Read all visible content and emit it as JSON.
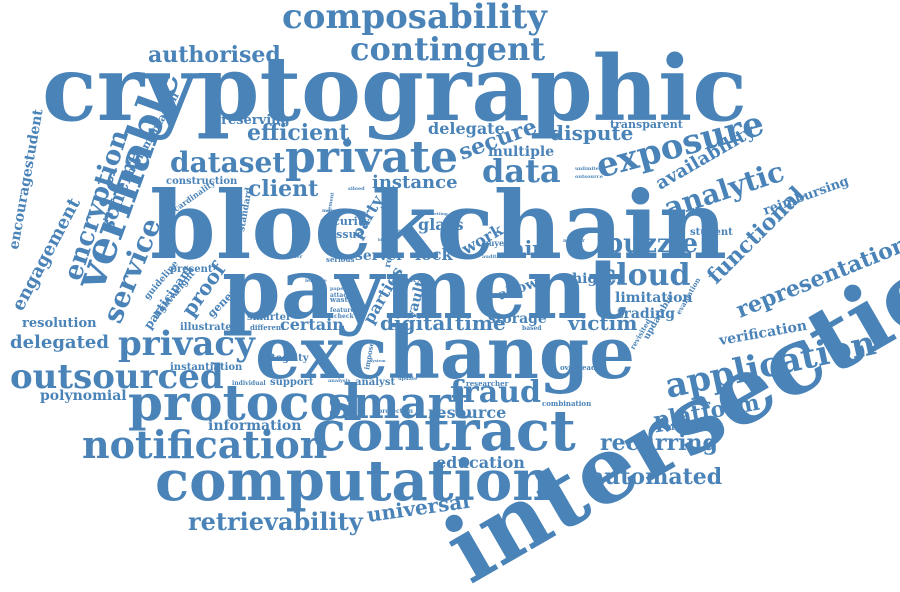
{
  "cloud": {
    "color": "#4a83b8",
    "words": [
      {
        "text": "cryptographic",
        "weight": 100
      },
      {
        "text": "blockchain",
        "weight": 96
      },
      {
        "text": "payment",
        "weight": 94
      },
      {
        "text": "intersection",
        "weight": 92
      },
      {
        "text": "exchange",
        "weight": 90
      },
      {
        "text": "computation",
        "weight": 70
      },
      {
        "text": "contract",
        "weight": 66
      },
      {
        "text": "protocol",
        "weight": 62
      },
      {
        "text": "smart",
        "weight": 55
      },
      {
        "text": "verifiable",
        "weight": 54
      },
      {
        "text": "notification",
        "weight": 50
      },
      {
        "text": "private",
        "weight": 50
      },
      {
        "text": "application",
        "weight": 46
      },
      {
        "text": "exposure",
        "weight": 45
      },
      {
        "text": "outsourced",
        "weight": 44
      },
      {
        "text": "privacy",
        "weight": 42
      },
      {
        "text": "composability",
        "weight": 42
      },
      {
        "text": "contingent",
        "weight": 40
      },
      {
        "text": "data",
        "weight": 38
      },
      {
        "text": "cloud",
        "weight": 38
      },
      {
        "text": "puzzle",
        "weight": 36
      },
      {
        "text": "analytic",
        "weight": 36
      },
      {
        "text": "dataset",
        "weight": 34
      },
      {
        "text": "fraud",
        "weight": 34
      },
      {
        "text": "encryption",
        "weight": 32
      },
      {
        "text": "service",
        "weight": 32
      },
      {
        "text": "client",
        "weight": 30
      },
      {
        "text": "retrievability",
        "weight": 30
      },
      {
        "text": "representation",
        "weight": 28
      },
      {
        "text": "platform",
        "weight": 28
      },
      {
        "text": "functional",
        "weight": 28
      },
      {
        "text": "automated",
        "weight": 28
      },
      {
        "text": "recurring",
        "weight": 28
      },
      {
        "text": "digital",
        "weight": 26
      },
      {
        "text": "time",
        "weight": 26
      },
      {
        "text": "victim",
        "weight": 26
      },
      {
        "text": "universal",
        "weight": 26
      },
      {
        "text": "secure",
        "weight": 26
      },
      {
        "text": "efficient",
        "weight": 26
      },
      {
        "text": "authorised",
        "weight": 26
      },
      {
        "text": "scheme",
        "weight": 26
      },
      {
        "text": "engagement",
        "weight": 24
      },
      {
        "text": "encouragestudent",
        "weight": 22
      },
      {
        "text": "proof",
        "weight": 24
      },
      {
        "text": "party",
        "weight": 24
      },
      {
        "text": "instance",
        "weight": 24
      },
      {
        "text": "availability",
        "weight": 24
      },
      {
        "text": "dispute",
        "weight": 24
      },
      {
        "text": "fair",
        "weight": 24
      },
      {
        "text": "delegated",
        "weight": 24
      },
      {
        "text": "delegate",
        "weight": 20
      },
      {
        "text": "polynomial",
        "weight": 20
      },
      {
        "text": "education",
        "weight": 20
      },
      {
        "text": "resource",
        "weight": 20
      },
      {
        "text": "information",
        "weight": 18
      },
      {
        "text": "multiple",
        "weight": 18
      },
      {
        "text": "storage",
        "weight": 18
      },
      {
        "text": "limitation",
        "weight": 18
      },
      {
        "text": "trading",
        "weight": 18
      },
      {
        "text": "higher",
        "weight": 18
      },
      {
        "text": "parties",
        "weight": 18
      },
      {
        "text": "certain",
        "weight": 18
      },
      {
        "text": "vault",
        "weight": 18
      },
      {
        "text": "verification",
        "weight": 18
      },
      {
        "text": "reimbursing",
        "weight": 16
      },
      {
        "text": "resolution",
        "weight": 16
      },
      {
        "text": "transparent",
        "weight": 16
      },
      {
        "text": "preserving",
        "weight": 16
      },
      {
        "text": "implementation",
        "weight": 16
      },
      {
        "text": "participant",
        "weight": 16
      },
      {
        "text": "generic",
        "weight": 16
      },
      {
        "text": "instantiation",
        "weight": 14
      },
      {
        "text": "construction",
        "weight": 14
      },
      {
        "text": "lock",
        "weight": 18
      },
      {
        "text": "glass",
        "weight": 18
      },
      {
        "text": "work",
        "weight": 18
      },
      {
        "text": "allow",
        "weight": 18
      },
      {
        "text": "server",
        "weight": 18
      },
      {
        "text": "security",
        "weight": 14
      },
      {
        "text": "issue",
        "weight": 14
      },
      {
        "text": "integrity",
        "weight": 14
      },
      {
        "text": "illustrate",
        "weight": 14
      },
      {
        "text": "present",
        "weight": 14
      },
      {
        "text": "guideline",
        "weight": 12
      },
      {
        "text": "lightweight",
        "weight": 12
      },
      {
        "text": "cardinality",
        "weight": 12
      },
      {
        "text": "standard",
        "weight": 12
      },
      {
        "text": "smarter",
        "weight": 12
      },
      {
        "text": "different",
        "weight": 12
      },
      {
        "text": "feature",
        "weight": 12
      },
      {
        "text": "waste",
        "weight": 12
      },
      {
        "text": "check",
        "weight": 12
      },
      {
        "text": "serious",
        "weight": 12
      },
      {
        "text": "cost",
        "weight": 12
      },
      {
        "text": "support",
        "weight": 14
      },
      {
        "text": "analyst",
        "weight": 14
      },
      {
        "text": "individual",
        "weight": 12
      },
      {
        "text": "analysis",
        "weight": 10
      },
      {
        "text": "researcher",
        "weight": 12
      },
      {
        "text": "combination",
        "weight": 12
      },
      {
        "text": "millisecond",
        "weight": 14
      },
      {
        "text": "overhead",
        "weight": 12
      },
      {
        "text": "evaluation",
        "weight": 12
      },
      {
        "text": "revisited",
        "weight": 12
      },
      {
        "text": "updatable",
        "weight": 12
      },
      {
        "text": "student",
        "weight": 14
      },
      {
        "text": "outsource",
        "weight": 10
      },
      {
        "text": "unlimited",
        "weight": 10
      },
      {
        "text": "number",
        "weight": 10
      },
      {
        "text": "buyer",
        "weight": 12
      },
      {
        "text": "coin",
        "weight": 12
      },
      {
        "text": "auditor",
        "weight": 10
      },
      {
        "text": "based",
        "weight": 10
      },
      {
        "text": "protection",
        "weight": 10
      },
      {
        "text": "update",
        "weight": 10
      },
      {
        "text": "impose",
        "weight": 10
      },
      {
        "text": "real",
        "weight": 12
      },
      {
        "text": "leakage",
        "weight": 10
      },
      {
        "text": "paper",
        "weight": 10
      },
      {
        "text": "attack",
        "weight": 12
      },
      {
        "text": "system",
        "weight": 10
      },
      {
        "text": "manner",
        "weight": 10
      },
      {
        "text": "element",
        "weight": 10
      },
      {
        "text": "siloed",
        "weight": 10
      },
      {
        "text": "feather",
        "weight": 10
      },
      {
        "text": "person",
        "weight": 10
      },
      {
        "text": "block",
        "weight": 10
      },
      {
        "text": "setting",
        "weight": 10
      }
    ]
  }
}
